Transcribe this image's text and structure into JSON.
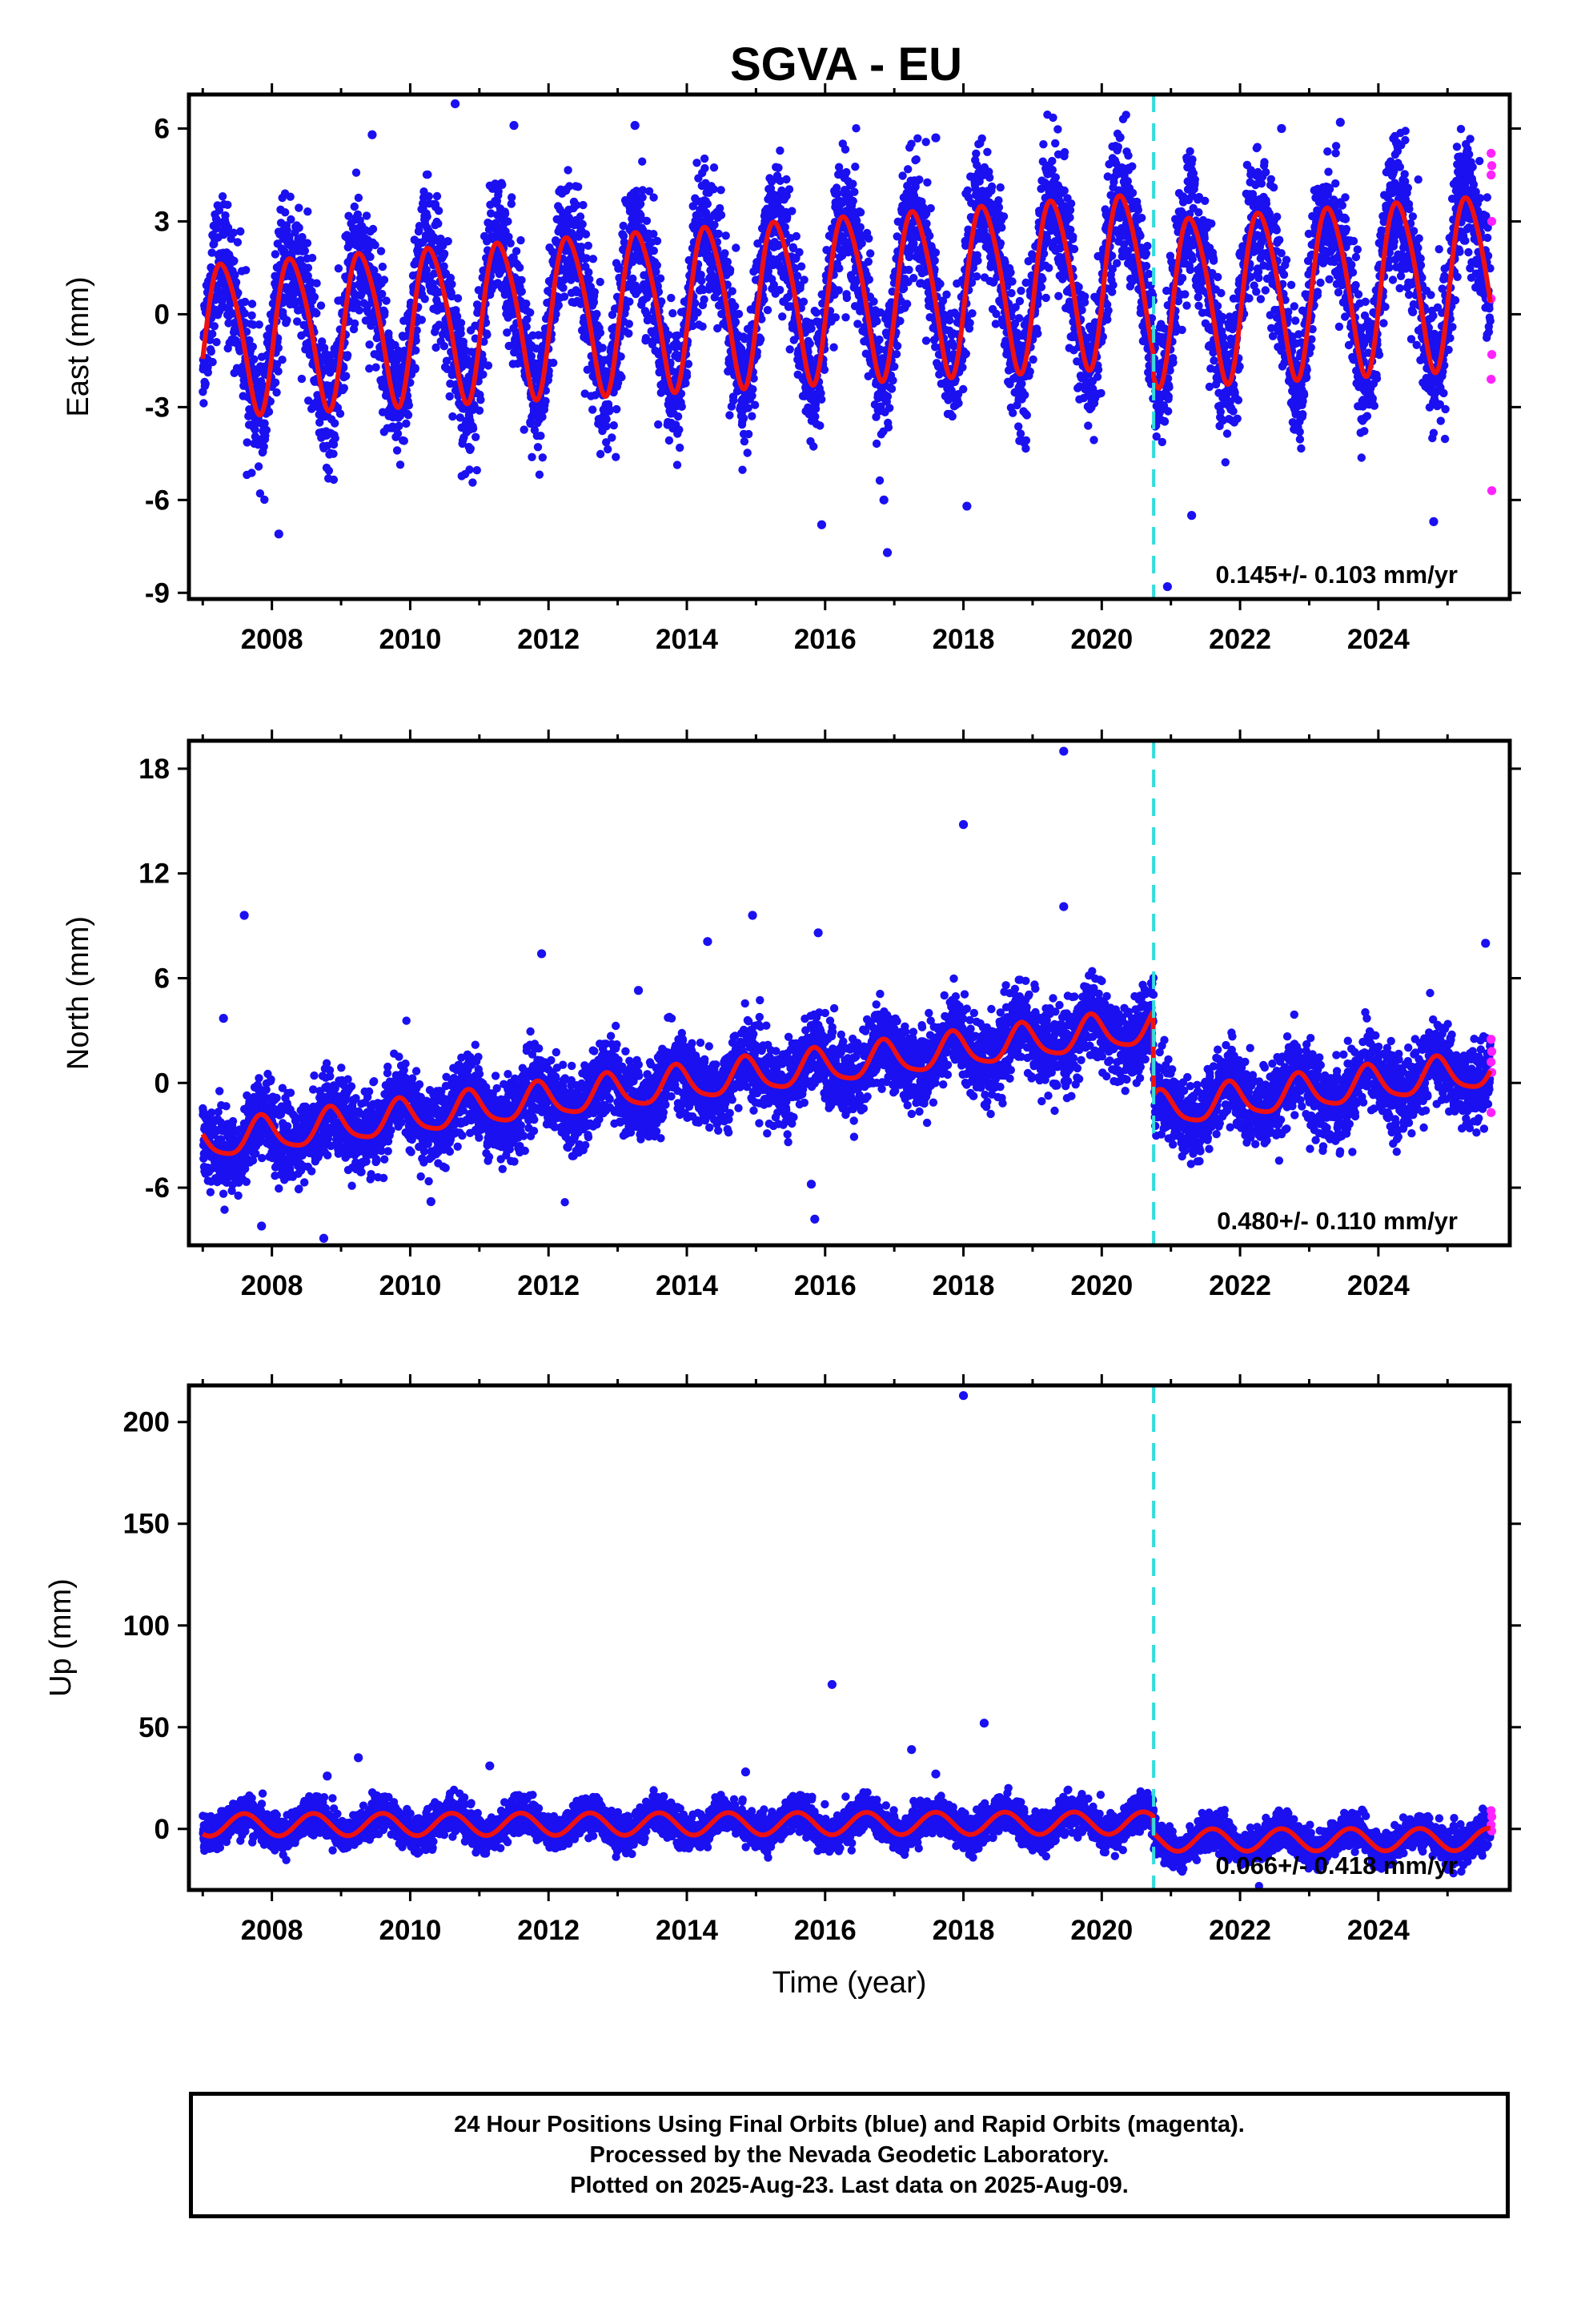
{
  "title": "SGVA - EU",
  "chart_data": [
    {
      "type": "scatter",
      "panel": "east",
      "ylabel": "East (mm)",
      "xlabel": "",
      "xlim": [
        2006.8,
        2025.9
      ],
      "ylim": [
        -9.2,
        7.1
      ],
      "xticks": [
        2008,
        2010,
        2012,
        2014,
        2016,
        2018,
        2020,
        2022,
        2024
      ],
      "yticks": [
        -9,
        -6,
        -3,
        0,
        3,
        6
      ],
      "ytick_labels": [
        "-9",
        "-6",
        "-3",
        "0",
        "3",
        "6"
      ],
      "break_year": 2020.75,
      "rate_text": "0.145+/- 0.103 mm/yr",
      "model": {
        "segments": [
          {
            "start": 2007.0,
            "end": 2020.75,
            "offset": -0.7,
            "trend": 0.145,
            "ref": 2007.0,
            "amp_annual": 2.65,
            "phase_annual": 0.05,
            "amp_semi": 0.35,
            "phase_semi": 0.5,
            "amp_start": 2.4,
            "amp_end": 2.75
          },
          {
            "start": 2020.75,
            "end": 2025.62,
            "offset": 0.5,
            "trend": 0.145,
            "ref": 2020.75,
            "amp_annual": 2.7,
            "phase_annual": 0.05,
            "amp_semi": 0.35,
            "phase_semi": 0.5,
            "amp_start": 2.65,
            "amp_end": 2.75
          }
        ],
        "scatter_sigma": 1.05
      },
      "outliers": [
        {
          "x": 2010.65,
          "y": 6.8
        },
        {
          "x": 2008.1,
          "y": -7.1
        },
        {
          "x": 2015.95,
          "y": -6.8
        },
        {
          "x": 2016.9,
          "y": -7.7
        },
        {
          "x": 2016.85,
          "y": -6.0
        },
        {
          "x": 2021.3,
          "y": -6.5
        },
        {
          "x": 2024.8,
          "y": -6.7
        },
        {
          "x": 2020.95,
          "y": -8.8
        },
        {
          "x": 2018.05,
          "y": -6.2
        },
        {
          "x": 2013.25,
          "y": 6.1
        },
        {
          "x": 2023.45,
          "y": 6.2
        },
        {
          "x": 2009.45,
          "y": 5.8
        },
        {
          "x": 2017.6,
          "y": 5.7
        },
        {
          "x": 2011.5,
          "y": 6.1
        },
        {
          "x": 2022.6,
          "y": 6.0
        }
      ],
      "rapid": [
        {
          "x": 2025.63,
          "y": 5.2
        },
        {
          "x": 2025.64,
          "y": 4.8
        },
        {
          "x": 2025.63,
          "y": 4.5
        },
        {
          "x": 2025.64,
          "y": 3.0
        },
        {
          "x": 2025.63,
          "y": 0.5
        },
        {
          "x": 2025.64,
          "y": -1.3
        },
        {
          "x": 2025.63,
          "y": -2.1
        },
        {
          "x": 2025.64,
          "y": -5.7
        }
      ]
    },
    {
      "type": "scatter",
      "panel": "north",
      "ylabel": "North (mm)",
      "xlabel": "",
      "xlim": [
        2006.8,
        2025.9
      ],
      "ylim": [
        -9.3,
        19.6
      ],
      "xticks": [
        2008,
        2010,
        2012,
        2014,
        2016,
        2018,
        2020,
        2022,
        2024
      ],
      "yticks": [
        -6,
        0,
        6,
        12,
        18
      ],
      "ytick_labels": [
        "-6",
        "0",
        "6",
        "12",
        "18"
      ],
      "break_year": 2020.75,
      "rate_text": "0.480+/- 0.110 mm/yr",
      "model": {
        "segments": [
          {
            "start": 2007.0,
            "end": 2020.75,
            "offset": -3.4,
            "trend": 0.48,
            "ref": 2007.0,
            "amp_annual": 1.0,
            "phase_annual": 0.6,
            "amp_semi": 0.2,
            "phase_semi": 0.2,
            "amp_start": 1.0,
            "amp_end": 1.0
          },
          {
            "start": 2020.75,
            "end": 2025.62,
            "offset": -1.6,
            "trend": 0.48,
            "ref": 2020.75,
            "amp_annual": 1.0,
            "phase_annual": 0.6,
            "amp_semi": 0.2,
            "phase_semi": 0.2,
            "amp_start": 1.0,
            "amp_end": 1.0
          }
        ],
        "scatter_sigma": 1.1
      },
      "outliers": [
        {
          "x": 2007.6,
          "y": 9.6
        },
        {
          "x": 2011.9,
          "y": 7.4
        },
        {
          "x": 2014.3,
          "y": 8.1
        },
        {
          "x": 2014.95,
          "y": 9.6
        },
        {
          "x": 2015.9,
          "y": 8.6
        },
        {
          "x": 2018.0,
          "y": 14.8
        },
        {
          "x": 2019.45,
          "y": 19.0
        },
        {
          "x": 2019.45,
          "y": 10.1
        },
        {
          "x": 2015.8,
          "y": -5.8
        },
        {
          "x": 2015.85,
          "y": -7.8
        },
        {
          "x": 2008.75,
          "y": -8.9
        },
        {
          "x": 2007.3,
          "y": 3.7
        },
        {
          "x": 2025.55,
          "y": 8.0
        },
        {
          "x": 2007.85,
          "y": -8.2
        },
        {
          "x": 2010.3,
          "y": -6.8
        },
        {
          "x": 2013.3,
          "y": 5.3
        }
      ],
      "rapid": [
        {
          "x": 2025.63,
          "y": 2.5
        },
        {
          "x": 2025.64,
          "y": 1.8
        },
        {
          "x": 2025.63,
          "y": 1.2
        },
        {
          "x": 2025.64,
          "y": 0.6
        },
        {
          "x": 2025.63,
          "y": -1.7
        }
      ]
    },
    {
      "type": "scatter",
      "panel": "up",
      "ylabel": "Up (mm)",
      "xlabel": "Time (year)",
      "xlim": [
        2006.8,
        2025.9
      ],
      "ylim": [
        -30,
        218
      ],
      "xticks": [
        2008,
        2010,
        2012,
        2014,
        2016,
        2018,
        2020,
        2022,
        2024
      ],
      "yticks": [
        0,
        50,
        100,
        150,
        200
      ],
      "ytick_labels": [
        "0",
        "50",
        "100",
        "150",
        "200"
      ],
      "break_year": 2020.75,
      "rate_text": "0.066+/- 0.418 mm/yr",
      "model": {
        "segments": [
          {
            "start": 2007.0,
            "end": 2020.75,
            "offset": 2.0,
            "trend": 0.066,
            "ref": 2007.0,
            "amp_annual": 5.5,
            "phase_annual": 0.35,
            "amp_semi": 0.0,
            "phase_semi": 0.0,
            "amp_start": 5.5,
            "amp_end": 5.5
          },
          {
            "start": 2020.75,
            "end": 2025.62,
            "offset": -5.5,
            "trend": 0.066,
            "ref": 2020.75,
            "amp_annual": 5.5,
            "phase_annual": 0.35,
            "amp_semi": 0.0,
            "phase_semi": 0.0,
            "amp_start": 5.5,
            "amp_end": 5.5
          }
        ],
        "scatter_sigma": 4.2
      },
      "outliers": [
        {
          "x": 2018.0,
          "y": 213
        },
        {
          "x": 2016.1,
          "y": 71
        },
        {
          "x": 2018.3,
          "y": 52
        },
        {
          "x": 2017.25,
          "y": 39
        },
        {
          "x": 2009.25,
          "y": 35
        },
        {
          "x": 2011.15,
          "y": 31
        },
        {
          "x": 2008.8,
          "y": 26
        },
        {
          "x": 2017.6,
          "y": 27
        },
        {
          "x": 2014.85,
          "y": 28
        }
      ],
      "rapid": [
        {
          "x": 2025.63,
          "y": 9
        },
        {
          "x": 2025.64,
          "y": 6
        },
        {
          "x": 2025.63,
          "y": 2
        },
        {
          "x": 2025.64,
          "y": -1
        }
      ]
    }
  ],
  "footer": {
    "line1": "24 Hour Positions Using Final Orbits (blue) and Rapid Orbits (magenta).",
    "line2": "Processed by the Nevada Geodetic Laboratory.",
    "line3": "Plotted on 2025-Aug-23. Last data on 2025-Aug-09."
  },
  "colors": {
    "final_orbits": "#1a10f0",
    "rapid_orbits": "#ff22ff",
    "model": "#ee1111",
    "break_line": "#33dddd",
    "frame": "#000000"
  }
}
